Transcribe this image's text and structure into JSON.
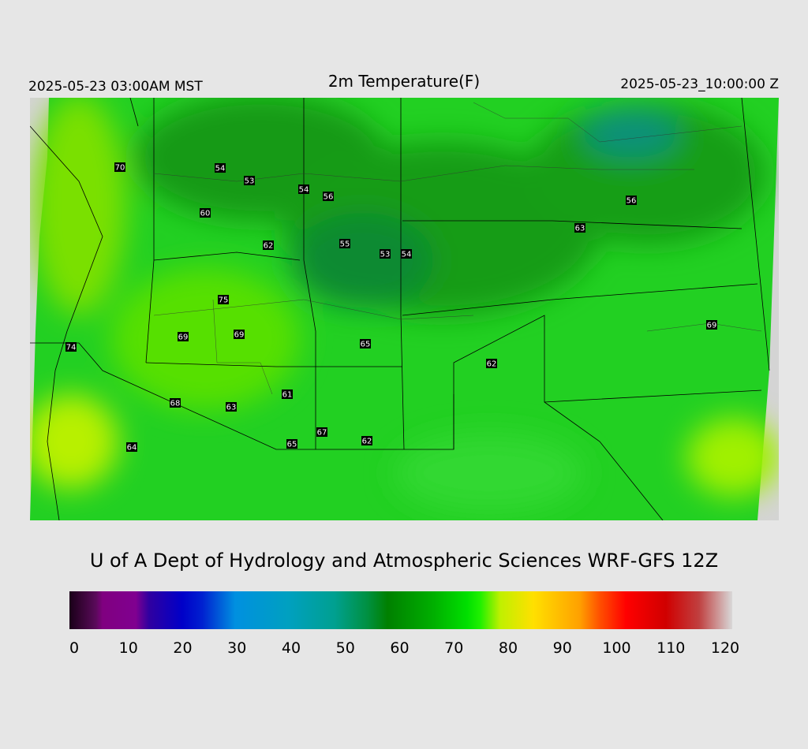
{
  "header": {
    "left": "2025-05-23 03:00AM MST",
    "title": "2m Temperature(F)",
    "right": "2025-05-23_10:00:00 Z"
  },
  "stations": [
    70,
    54,
    53,
    54,
    56,
    60,
    62,
    55,
    53,
    54,
    56,
    63,
    75,
    69,
    69,
    65,
    74,
    62,
    69,
    61,
    68,
    63,
    67,
    62,
    65,
    64
  ],
  "credit": "U of A Dept of Hydrology and Atmospheric Sciences WRF-GFS 12Z",
  "colorbar": {
    "lim": [
      0,
      120
    ],
    "ticks": [
      0,
      10,
      20,
      30,
      40,
      50,
      60,
      70,
      80,
      90,
      100,
      110,
      120
    ]
  }
}
